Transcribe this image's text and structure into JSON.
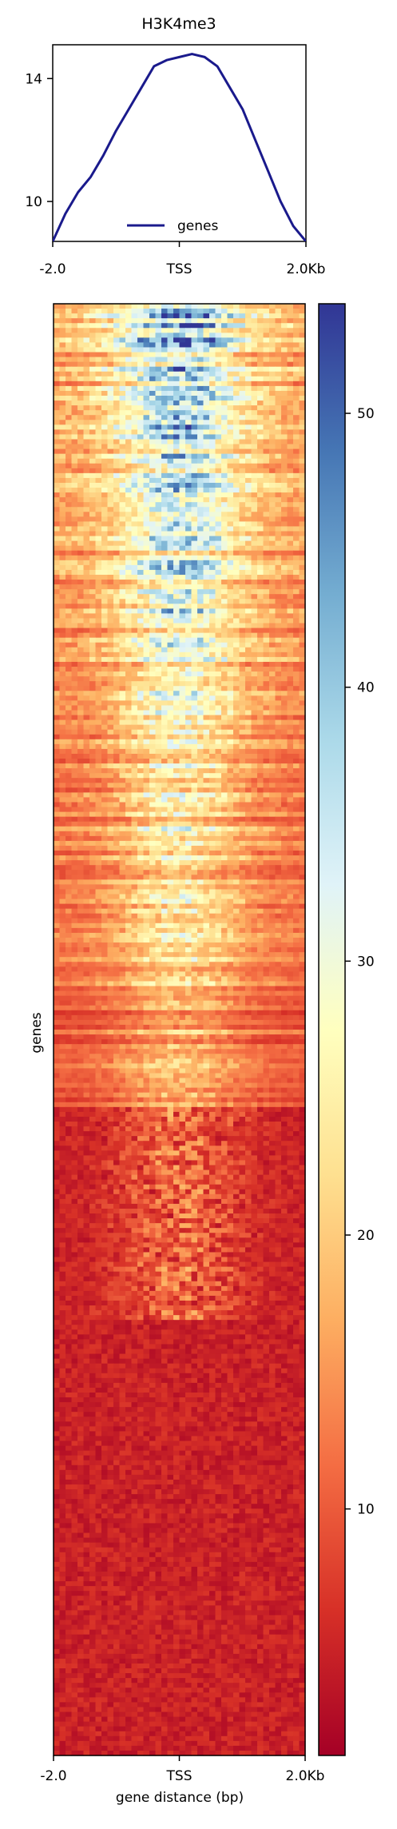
{
  "chart_data": [
    {
      "type": "line",
      "title": "H3K4me3",
      "xlabel": "",
      "ylabel": "",
      "x_ticks": [
        "-2.0",
        "TSS",
        "2.0Kb"
      ],
      "x": [
        -2000,
        -1800,
        -1600,
        -1400,
        -1200,
        -1000,
        -800,
        -600,
        -400,
        -200,
        0,
        200,
        400,
        600,
        800,
        1000,
        1200,
        1400,
        1600,
        1800,
        2000
      ],
      "xlim": [
        -2000,
        2000
      ],
      "y_ticks": [
        10,
        14
      ],
      "ylim": [
        8.7,
        15.1
      ],
      "series": [
        {
          "name": "genes",
          "color": "#1a1a8c",
          "values": [
            8.7,
            9.6,
            10.3,
            10.8,
            11.5,
            12.3,
            13.0,
            13.7,
            14.4,
            14.6,
            14.7,
            14.8,
            14.7,
            14.4,
            13.7,
            13.0,
            12.0,
            11.0,
            10.0,
            9.2,
            8.7
          ]
        }
      ],
      "legend": "lower-center",
      "grid": false
    },
    {
      "type": "heatmap",
      "title": "",
      "xlabel": "gene distance (bp)",
      "ylabel": "genes",
      "x_ticks": [
        "-2.0",
        "TSS",
        "2.0Kb"
      ],
      "colormap": "RdYlBu",
      "colorbar": {
        "ticks": [
          10,
          20,
          30,
          40,
          50
        ],
        "range": [
          1,
          54
        ]
      },
      "rows_sorted_by_mean": "descending"
    }
  ]
}
